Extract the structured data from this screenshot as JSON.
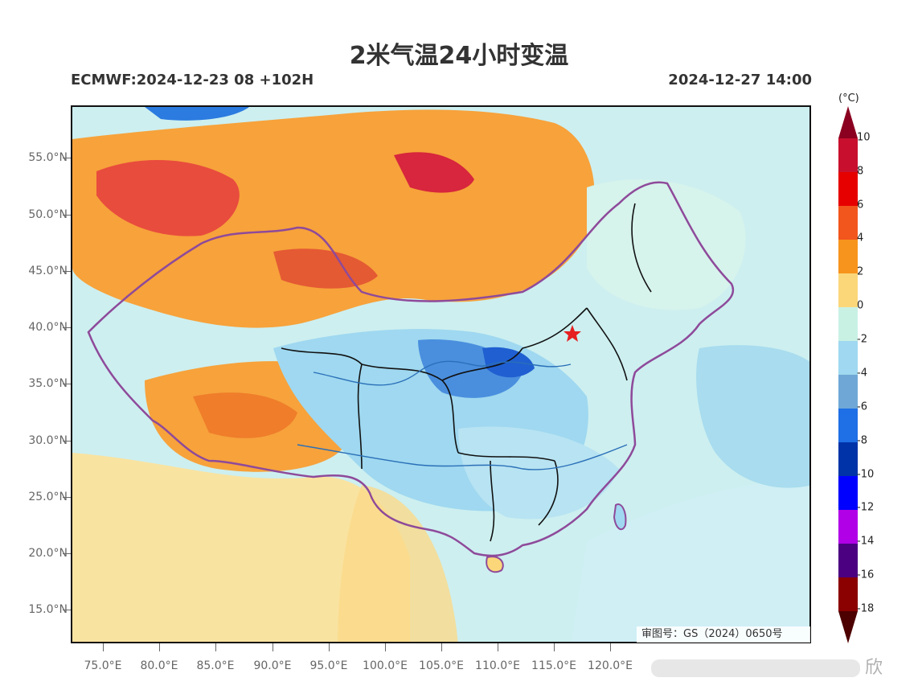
{
  "header": {
    "title": "2米气温24小时变温",
    "model_run": "ECMWF:2024-12-23 08 +102H",
    "valid_time": "2024-12-27 14:00"
  },
  "map": {
    "lat_labels": [
      "55.0°N",
      "50.0°N",
      "45.0°N",
      "40.0°N",
      "35.0°N",
      "30.0°N",
      "25.0°N",
      "20.0°N",
      "15.0°N"
    ],
    "lon_labels": [
      "75.0°E",
      "80.0°E",
      "85.0°E",
      "90.0°E",
      "95.0°E",
      "100.0°E",
      "105.0°E",
      "110.0°E",
      "115.0°E",
      "120.0°E"
    ],
    "approval_number": "审图号：GS（2024）0650号",
    "marker": "star-red"
  },
  "legend": {
    "unit": "(°C)",
    "labels": [
      "10",
      "8",
      "6",
      "4",
      "2",
      "0",
      "-2",
      "-4",
      "-6",
      "-8",
      "-10",
      "-12",
      "-14",
      "-16",
      "-18"
    ],
    "colors": [
      "#8b0020",
      "#c8102e",
      "#e60000",
      "#f2561d",
      "#f7941d",
      "#fbd77a",
      "#c8f1e4",
      "#9fd8f0",
      "#6fa8d6",
      "#1f6fe6",
      "#0033a8",
      "#0000ff",
      "#b100e8",
      "#4b0082",
      "#8b0000",
      "#4d0000"
    ]
  },
  "watermark": {
    "text": "欣"
  }
}
